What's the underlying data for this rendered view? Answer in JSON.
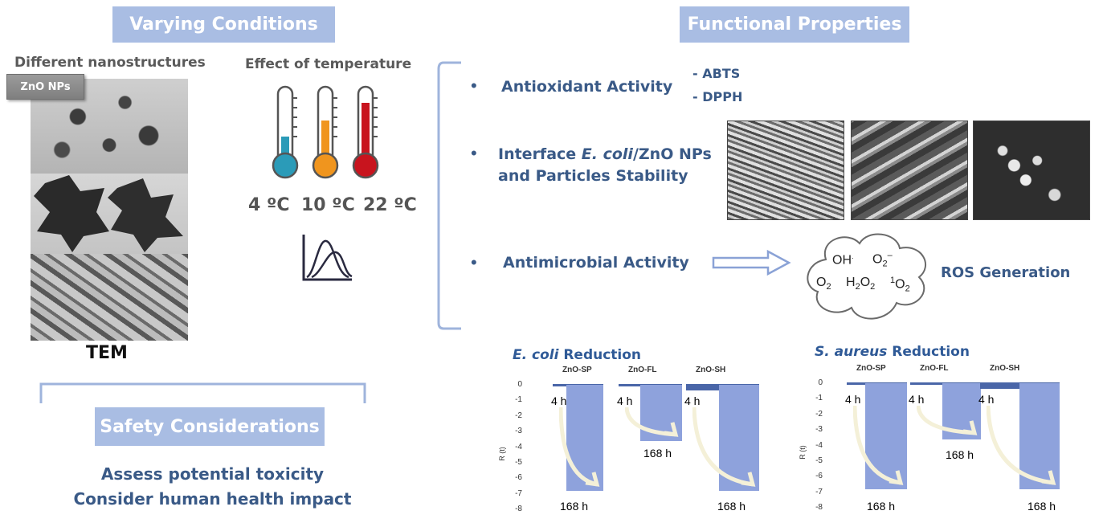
{
  "left_section": {
    "banner": "Varying Conditions",
    "nanostructures_label": "Different nanostructures",
    "zno_tag": "ZnO NPs",
    "tem_label": "TEM",
    "temperature_label": "Effect of temperature",
    "temperatures": [
      "4 ºC",
      "10 ºC",
      "22 ºC"
    ],
    "thermometer_colors": [
      "#2b9bb8",
      "#f0951e",
      "#c8141e"
    ]
  },
  "safety": {
    "banner": "Safety Considerations",
    "line1": "Assess potential toxicity",
    "line2": "Consider human health impact"
  },
  "right_section": {
    "banner": "Functional Properties",
    "bullet": "•",
    "antioxidant": "Antioxidant Activity",
    "assays": [
      "- ABTS",
      "- DPPH"
    ],
    "interface_prefix": "Interface ",
    "interface_species": "E. coli",
    "interface_suffix": "/ZnO NPs",
    "interface_line2": "and Particles Stability",
    "antimicrobial": "Antimicrobial Activity",
    "ros_label": "ROS Generation",
    "ros_species": {
      "oh": "OH",
      "o2_superoxide": "O",
      "o2": "O",
      "h2o2": "H",
      "singlet_o2": "O"
    }
  },
  "chart_data": [
    {
      "type": "bar",
      "title_species": "E. coli",
      "title_rest": " Reduction",
      "ylabel": "R (t)",
      "ylim": [
        -8,
        0
      ],
      "yticks": [
        "0",
        "-1",
        "-2",
        "-3",
        "-4",
        "-5",
        "-6",
        "-7",
        "-8"
      ],
      "categories": [
        "ZnO-SP",
        "ZnO-FL",
        "ZnO-SH"
      ],
      "series": [
        {
          "name": "4 h",
          "values": [
            -0.1,
            -0.1,
            -0.4
          ]
        },
        {
          "name": "168 h",
          "values": [
            -6.8,
            -3.6,
            -6.8
          ]
        }
      ],
      "time_start": "4 h",
      "time_end": "168 h"
    },
    {
      "type": "bar",
      "title_species": "S. aureus",
      "title_rest": " Reduction",
      "ylabel": "R (t)",
      "ylim": [
        -8,
        0
      ],
      "yticks": [
        "0",
        "-1",
        "-2",
        "-3",
        "-4",
        "-5",
        "-6",
        "-7",
        "-8"
      ],
      "categories": [
        "ZnO-SP",
        "ZnO-FL",
        "ZnO-SH"
      ],
      "series": [
        {
          "name": "4 h",
          "values": [
            -0.1,
            -0.1,
            -0.4
          ]
        },
        {
          "name": "168 h",
          "values": [
            -6.8,
            -3.6,
            -6.8
          ]
        }
      ],
      "time_start": "4 h",
      "time_end": "168 h"
    }
  ]
}
